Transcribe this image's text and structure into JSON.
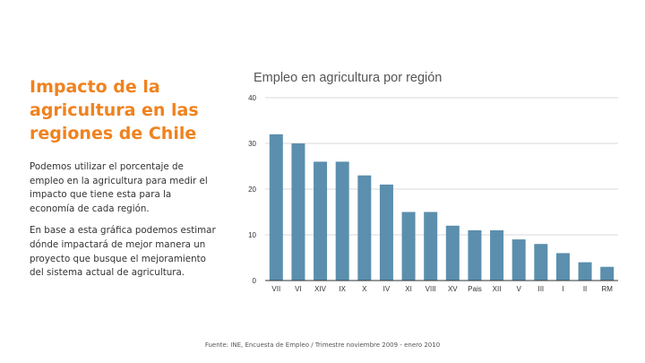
{
  "slide": {
    "title": "Impacto de la agricultura en las regiones de Chile",
    "paragraph_1": "Podemos utilizar el porcentaje de empleo en la agricultura para medir el impacto que tiene esta para la economía de cada región.",
    "paragraph_2": "En base a esta gráfica podemos estimar dónde impactará de mejor manera un proyecto que busque el mejoramiento del sistema actual de agricultura.",
    "source": "Fuente: INE, Encuesta de Empleo / Trimestre noviembre 2009 - enero 2010",
    "accent_color": "#F0821E"
  },
  "chart_data": {
    "type": "bar",
    "title": "Empleo en agricultura por región",
    "xlabel": "",
    "ylabel": "",
    "categories": [
      "VII",
      "VI",
      "XIV",
      "IX",
      "X",
      "IV",
      "XI",
      "VIII",
      "XV",
      "Pais",
      "XII",
      "V",
      "III",
      "I",
      "II",
      "RM"
    ],
    "values": [
      32,
      30,
      26,
      26,
      23,
      21,
      15,
      15,
      12,
      11,
      11,
      9,
      8,
      6,
      4,
      3
    ],
    "ylim": [
      0,
      40
    ],
    "yticks": [
      0,
      10,
      20,
      30,
      40
    ],
    "grid": true,
    "legend": "none",
    "bar_color": "#5B8FAD",
    "grid_color": "#D9D9D9",
    "axis_color": "#333333"
  }
}
